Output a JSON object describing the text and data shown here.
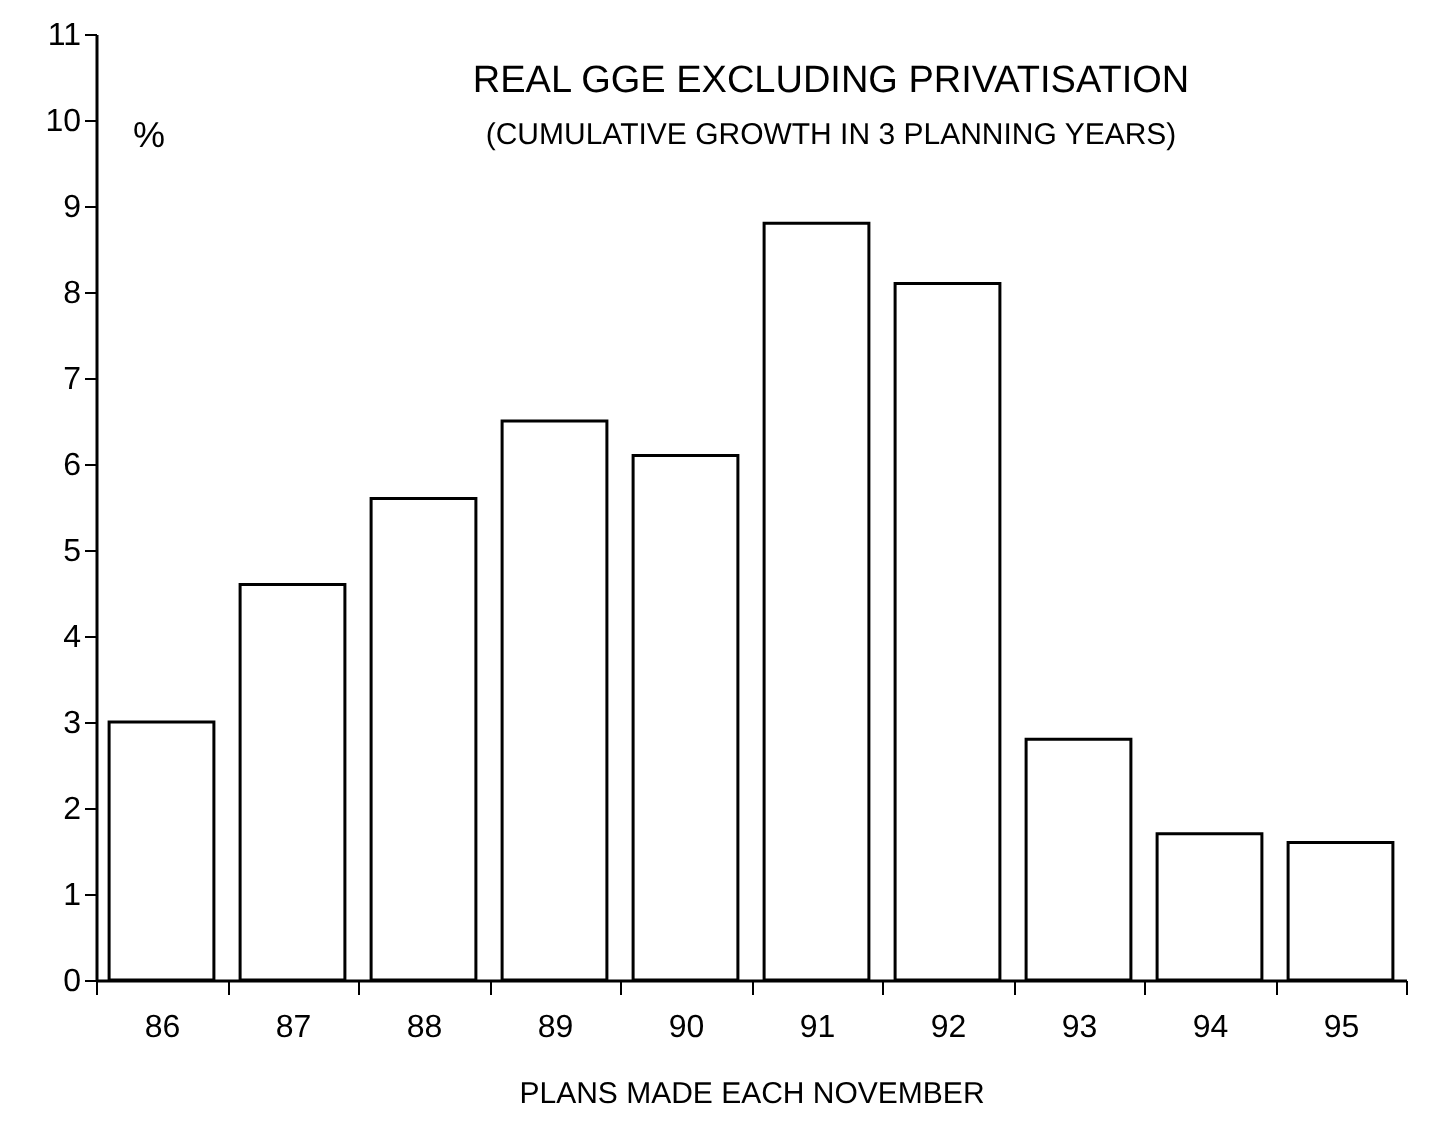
{
  "chart_data": {
    "type": "bar",
    "title": "REAL GGE EXCLUDING PRIVATISATION",
    "subtitle": "(CUMULATIVE GROWTH IN 3 PLANNING YEARS)",
    "xlabel": "PLANS MADE EACH NOVEMBER",
    "ylabel": "%",
    "categories": [
      "86",
      "87",
      "88",
      "89",
      "90",
      "91",
      "92",
      "93",
      "94",
      "95"
    ],
    "values": [
      3.0,
      4.6,
      5.6,
      6.5,
      6.1,
      8.8,
      8.1,
      2.8,
      1.7,
      1.6
    ],
    "color": "#ffffff",
    "ylim": [
      0,
      11
    ],
    "yticks": [
      0,
      1,
      2,
      3,
      4,
      5,
      6,
      7,
      8,
      9,
      10,
      11
    ],
    "grid": false
  }
}
